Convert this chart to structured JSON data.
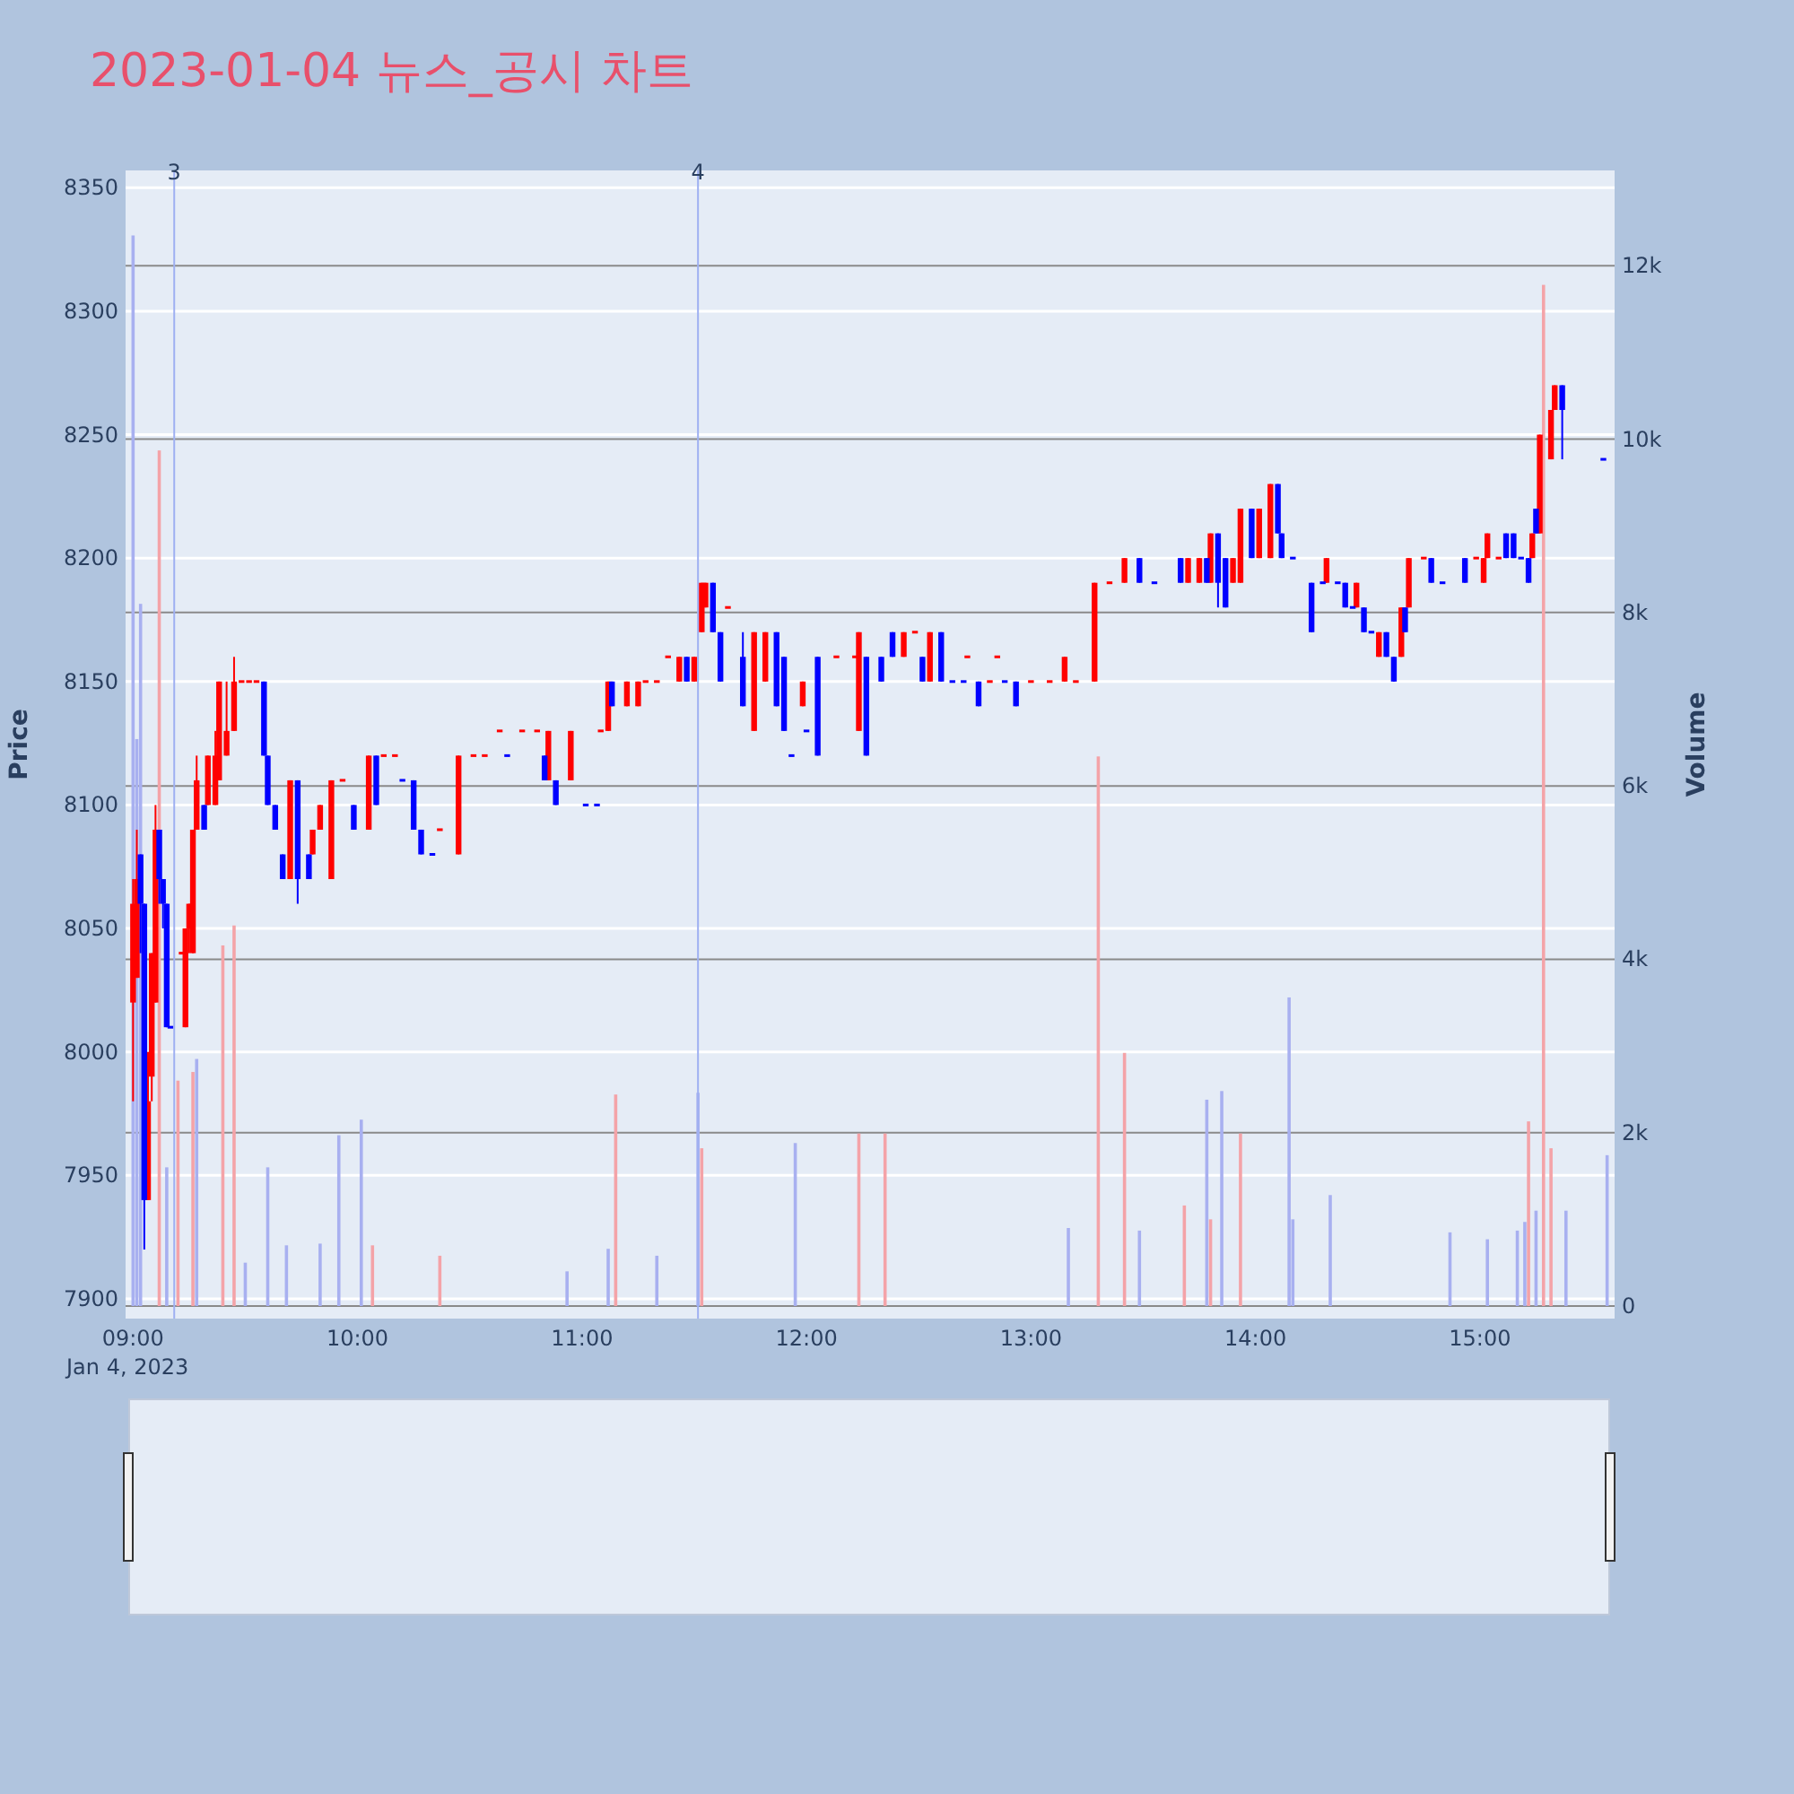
{
  "chart_data": {
    "type": "candlestick",
    "title": "2023-01-04 뉴스_공시 차트",
    "ylabel": "Price",
    "y2label": "Volume",
    "grid": "y",
    "xlim": [
      "2023-01-04T08:58",
      "2023-01-04T15:36"
    ],
    "xticks": [
      {
        "value": "2023-01-04T09:00",
        "label": "09:00\nJan 4, 2023"
      },
      {
        "value": "2023-01-04T10:00",
        "label": "10:00"
      },
      {
        "value": "2023-01-04T11:00",
        "label": "11:00"
      },
      {
        "value": "2023-01-04T12:00",
        "label": "12:00"
      },
      {
        "value": "2023-01-04T13:00",
        "label": "13:00"
      },
      {
        "value": "2023-01-04T14:00",
        "label": "14:00"
      },
      {
        "value": "2023-01-04T15:00",
        "label": "15:00"
      }
    ],
    "ylim": [
      7892,
      8357
    ],
    "yticks": [
      7900,
      7950,
      8000,
      8050,
      8100,
      8150,
      8200,
      8250,
      8300,
      8350
    ],
    "y2lim": [
      -145,
      13100
    ],
    "y2ticks": [
      0,
      {
        "value": 2000,
        "label": "2k"
      },
      {
        "value": 4000,
        "label": "4k"
      },
      {
        "value": 6000,
        "label": "6k"
      },
      {
        "value": 8000,
        "label": "8k"
      },
      {
        "value": 10000,
        "label": "10k"
      },
      {
        "value": 12000,
        "label": "12k"
      }
    ],
    "ref_lines": [
      {
        "axis": "x",
        "value": "2023-01-04T09:11",
        "label": "3",
        "color": "#9fb0f2"
      },
      {
        "axis": "x",
        "value": "2023-01-04T11:31",
        "label": "4",
        "color": "#9fb0f2"
      }
    ],
    "series": [
      {
        "type": "bar",
        "axis": "y2",
        "x": [
          "2023-01-04T09:00",
          "2023-01-04T09:01",
          "2023-01-04T09:02",
          "2023-01-04T09:07",
          "2023-01-04T09:09",
          "2023-01-04T09:12",
          "2023-01-04T09:16",
          "2023-01-04T09:17",
          "2023-01-04T09:24",
          "2023-01-04T09:27",
          "2023-01-04T09:30",
          "2023-01-04T09:36",
          "2023-01-04T09:41",
          "2023-01-04T09:50",
          "2023-01-04T09:55",
          "2023-01-04T10:01",
          "2023-01-04T10:04",
          "2023-01-04T10:22",
          "2023-01-04T10:56",
          "2023-01-04T11:07",
          "2023-01-04T11:09",
          "2023-01-04T11:20",
          "2023-01-04T11:31",
          "2023-01-04T11:32",
          "2023-01-04T11:57",
          "2023-01-04T12:14",
          "2023-01-04T12:21",
          "2023-01-04T13:10",
          "2023-01-04T13:18",
          "2023-01-04T13:25",
          "2023-01-04T13:29",
          "2023-01-04T13:41",
          "2023-01-04T13:47",
          "2023-01-04T13:48",
          "2023-01-04T13:51",
          "2023-01-04T13:56",
          "2023-01-04T14:09",
          "2023-01-04T14:10",
          "2023-01-04T14:20",
          "2023-01-04T14:52",
          "2023-01-04T15:02",
          "2023-01-04T15:10",
          "2023-01-04T15:12",
          "2023-01-04T15:13",
          "2023-01-04T15:15",
          "2023-01-04T15:17",
          "2023-01-04T15:19",
          "2023-01-04T15:23",
          "2023-01-04T15:34"
        ],
        "values": [
          12350,
          6540,
          8100,
          9870,
          1600,
          2600,
          2700,
          2850,
          4160,
          4390,
          500,
          1600,
          700,
          720,
          1970,
          2150,
          700,
          580,
          400,
          660,
          2440,
          580,
          2460,
          1820,
          1880,
          1990,
          1990,
          900,
          6340,
          2920,
          870,
          1160,
          2380,
          1000,
          2480,
          1990,
          3560,
          1000,
          1280,
          850,
          770,
          870,
          970,
          2130,
          1100,
          11780,
          1820,
          1100,
          1740
        ],
        "colors": [
          "#a8b0f0",
          "#a8b0f0",
          "#a8b0f0",
          "#f4a3a8",
          "#a8b0f0",
          "#f4a3a8",
          "#f4a3a8",
          "#a8b0f0",
          "#f4a3a8",
          "#f4a3a8",
          "#a8b0f0",
          "#a8b0f0",
          "#a8b0f0",
          "#a8b0f0",
          "#a8b0f0",
          "#a8b0f0",
          "#f4a3a8",
          "#f4a3a8",
          "#a8b0f0",
          "#a8b0f0",
          "#f4a3a8",
          "#a8b0f0",
          "#a8b0f0",
          "#f4a3a8",
          "#a8b0f0",
          "#f4a3a8",
          "#f4a3a8",
          "#a8b0f0",
          "#f4a3a8",
          "#f4a3a8",
          "#a8b0f0",
          "#f4a3a8",
          "#a8b0f0",
          "#f4a3a8",
          "#a8b0f0",
          "#f4a3a8",
          "#a8b0f0",
          "#a8b0f0",
          "#a8b0f0",
          "#a8b0f0",
          "#a8b0f0",
          "#a8b0f0",
          "#a8b0f0",
          "#f4a3a8",
          "#a8b0f0",
          "#f4a3a8",
          "#f4a3a8",
          "#a8b0f0",
          "#a8b0f0"
        ]
      },
      {
        "type": "candlestick",
        "color": "#ff0000",
        "x": [
          "2023-01-04T09:00",
          "2023-01-04T09:01",
          "2023-01-04T09:04",
          "2023-01-04T09:05",
          "2023-01-04T09:06",
          "2023-01-04T09:13",
          "2023-01-04T09:14",
          "2023-01-04T09:15",
          "2023-01-04T09:16",
          "2023-01-04T09:17",
          "2023-01-04T09:20",
          "2023-01-04T09:22",
          "2023-01-04T09:23",
          "2023-01-04T09:25",
          "2023-01-04T09:27",
          "2023-01-04T09:29",
          "2023-01-04T09:31",
          "2023-01-04T09:33",
          "2023-01-04T09:42",
          "2023-01-04T09:48",
          "2023-01-04T09:50",
          "2023-01-04T09:53",
          "2023-01-04T09:56",
          "2023-01-04T10:03",
          "2023-01-04T10:07",
          "2023-01-04T10:10",
          "2023-01-04T10:22",
          "2023-01-04T10:27",
          "2023-01-04T10:31",
          "2023-01-04T10:34",
          "2023-01-04T10:38",
          "2023-01-04T10:44",
          "2023-01-04T10:48",
          "2023-01-04T10:51",
          "2023-01-04T10:57",
          "2023-01-04T11:05",
          "2023-01-04T11:07",
          "2023-01-04T11:12",
          "2023-01-04T11:15",
          "2023-01-04T11:17",
          "2023-01-04T11:20",
          "2023-01-04T11:23",
          "2023-01-04T11:26",
          "2023-01-04T11:30",
          "2023-01-04T11:32",
          "2023-01-04T11:33",
          "2023-01-04T11:39",
          "2023-01-04T11:46",
          "2023-01-04T11:49",
          "2023-01-04T11:59",
          "2023-01-04T12:08",
          "2023-01-04T12:13",
          "2023-01-04T12:14",
          "2023-01-04T12:26",
          "2023-01-04T12:29",
          "2023-01-04T12:33",
          "2023-01-04T12:43",
          "2023-01-04T12:49",
          "2023-01-04T12:51",
          "2023-01-04T13:00",
          "2023-01-04T13:05",
          "2023-01-04T13:09",
          "2023-01-04T13:12",
          "2023-01-04T13:17",
          "2023-01-04T13:21",
          "2023-01-04T13:25",
          "2023-01-04T13:42",
          "2023-01-04T13:45",
          "2023-01-04T13:48",
          "2023-01-04T13:54",
          "2023-01-04T13:56",
          "2023-01-04T14:01",
          "2023-01-04T14:04",
          "2023-01-04T14:19",
          "2023-01-04T14:27",
          "2023-01-04T14:33",
          "2023-01-04T14:39",
          "2023-01-04T14:41",
          "2023-01-04T14:45",
          "2023-01-04T14:59",
          "2023-01-04T15:01",
          "2023-01-04T15:02",
          "2023-01-04T15:05",
          "2023-01-04T15:14",
          "2023-01-04T15:16",
          "2023-01-04T15:19",
          "2023-01-04T15:20"
        ],
        "ohlc": [
          [
            8020,
            8070,
            7980,
            8060
          ],
          [
            8030,
            8090,
            8030,
            8070
          ],
          [
            7940,
            8000,
            7940,
            7980
          ],
          [
            7990,
            8040,
            7980,
            8040
          ],
          [
            8020,
            8100,
            8020,
            8090
          ],
          [
            8040,
            8040,
            8040,
            8040
          ],
          [
            8010,
            8050,
            8010,
            8050
          ],
          [
            8050,
            8060,
            8040,
            8060
          ],
          [
            8040,
            8090,
            8040,
            8090
          ],
          [
            8090,
            8120,
            8090,
            8110
          ],
          [
            8100,
            8120,
            8100,
            8120
          ],
          [
            8100,
            8130,
            8100,
            8120
          ],
          [
            8110,
            8150,
            8110,
            8150
          ],
          [
            8120,
            8150,
            8120,
            8130
          ],
          [
            8130,
            8160,
            8130,
            8150
          ],
          [
            8150,
            8150,
            8150,
            8150
          ],
          [
            8150,
            8150,
            8150,
            8150
          ],
          [
            8150,
            8150,
            8150,
            8150
          ],
          [
            8070,
            8110,
            8070,
            8110
          ],
          [
            8080,
            8090,
            8080,
            8090
          ],
          [
            8090,
            8100,
            8090,
            8100
          ],
          [
            8070,
            8110,
            8070,
            8110
          ],
          [
            8110,
            8110,
            8110,
            8110
          ],
          [
            8090,
            8120,
            8090,
            8120
          ],
          [
            8120,
            8120,
            8120,
            8120
          ],
          [
            8120,
            8120,
            8120,
            8120
          ],
          [
            8090,
            8090,
            8090,
            8090
          ],
          [
            8080,
            8120,
            8080,
            8120
          ],
          [
            8120,
            8120,
            8120,
            8120
          ],
          [
            8120,
            8120,
            8120,
            8120
          ],
          [
            8130,
            8130,
            8130,
            8130
          ],
          [
            8130,
            8130,
            8130,
            8130
          ],
          [
            8130,
            8130,
            8130,
            8130
          ],
          [
            8110,
            8130,
            8110,
            8130
          ],
          [
            8110,
            8130,
            8110,
            8130
          ],
          [
            8130,
            8130,
            8130,
            8130
          ],
          [
            8130,
            8150,
            8130,
            8150
          ],
          [
            8140,
            8150,
            8140,
            8150
          ],
          [
            8140,
            8150,
            8140,
            8150
          ],
          [
            8150,
            8150,
            8150,
            8150
          ],
          [
            8150,
            8150,
            8150,
            8150
          ],
          [
            8160,
            8160,
            8160,
            8160
          ],
          [
            8150,
            8160,
            8150,
            8160
          ],
          [
            8150,
            8160,
            8150,
            8160
          ],
          [
            8170,
            8190,
            8170,
            8190
          ],
          [
            8180,
            8190,
            8180,
            8190
          ],
          [
            8180,
            8180,
            8180,
            8180
          ],
          [
            8130,
            8170,
            8130,
            8170
          ],
          [
            8150,
            8170,
            8150,
            8170
          ],
          [
            8140,
            8150,
            8140,
            8150
          ],
          [
            8160,
            8160,
            8160,
            8160
          ],
          [
            8160,
            8160,
            8160,
            8160
          ],
          [
            8130,
            8170,
            8130,
            8170
          ],
          [
            8160,
            8170,
            8160,
            8170
          ],
          [
            8170,
            8170,
            8170,
            8170
          ],
          [
            8150,
            8170,
            8150,
            8170
          ],
          [
            8160,
            8160,
            8160,
            8160
          ],
          [
            8150,
            8150,
            8150,
            8150
          ],
          [
            8160,
            8160,
            8160,
            8160
          ],
          [
            8150,
            8150,
            8150,
            8150
          ],
          [
            8150,
            8150,
            8150,
            8150
          ],
          [
            8150,
            8160,
            8150,
            8160
          ],
          [
            8150,
            8150,
            8150,
            8150
          ],
          [
            8150,
            8190,
            8150,
            8190
          ],
          [
            8190,
            8190,
            8190,
            8190
          ],
          [
            8190,
            8200,
            8190,
            8200
          ],
          [
            8190,
            8200,
            8190,
            8200
          ],
          [
            8190,
            8200,
            8190,
            8200
          ],
          [
            8190,
            8210,
            8190,
            8210
          ],
          [
            8190,
            8200,
            8190,
            8200
          ],
          [
            8190,
            8220,
            8190,
            8220
          ],
          [
            8200,
            8220,
            8200,
            8220
          ],
          [
            8200,
            8230,
            8200,
            8230
          ],
          [
            8190,
            8200,
            8190,
            8200
          ],
          [
            8180,
            8190,
            8180,
            8190
          ],
          [
            8160,
            8170,
            8160,
            8170
          ],
          [
            8160,
            8180,
            8160,
            8180
          ],
          [
            8180,
            8200,
            8180,
            8200
          ],
          [
            8200,
            8200,
            8200,
            8200
          ],
          [
            8200,
            8200,
            8200,
            8200
          ],
          [
            8190,
            8200,
            8190,
            8200
          ],
          [
            8200,
            8210,
            8200,
            8210
          ],
          [
            8200,
            8200,
            8200,
            8200
          ],
          [
            8200,
            8210,
            8200,
            8210
          ],
          [
            8210,
            8250,
            8210,
            8250
          ],
          [
            8240,
            8260,
            8240,
            8260
          ],
          [
            8260,
            8270,
            8260,
            8270
          ]
        ]
      },
      {
        "type": "candlestick",
        "color": "#0000ff",
        "x": [
          "2023-01-04T09:02",
          "2023-01-04T09:03",
          "2023-01-04T09:07",
          "2023-01-04T09:08",
          "2023-01-04T09:09",
          "2023-01-04T09:10",
          "2023-01-04T09:19",
          "2023-01-04T09:35",
          "2023-01-04T09:36",
          "2023-01-04T09:38",
          "2023-01-04T09:40",
          "2023-01-04T09:44",
          "2023-01-04T09:47",
          "2023-01-04T09:59",
          "2023-01-04T10:05",
          "2023-01-04T10:12",
          "2023-01-04T10:15",
          "2023-01-04T10:17",
          "2023-01-04T10:20",
          "2023-01-04T10:40",
          "2023-01-04T10:50",
          "2023-01-04T10:53",
          "2023-01-04T11:01",
          "2023-01-04T11:04",
          "2023-01-04T11:08",
          "2023-01-04T11:28",
          "2023-01-04T11:35",
          "2023-01-04T11:37",
          "2023-01-04T11:43",
          "2023-01-04T11:52",
          "2023-01-04T11:54",
          "2023-01-04T11:56",
          "2023-01-04T12:00",
          "2023-01-04T12:03",
          "2023-01-04T12:16",
          "2023-01-04T12:20",
          "2023-01-04T12:23",
          "2023-01-04T12:31",
          "2023-01-04T12:36",
          "2023-01-04T12:39",
          "2023-01-04T12:42",
          "2023-01-04T12:46",
          "2023-01-04T12:53",
          "2023-01-04T12:56",
          "2023-01-04T13:29",
          "2023-01-04T13:33",
          "2023-01-04T13:40",
          "2023-01-04T13:47",
          "2023-01-04T13:50",
          "2023-01-04T13:52",
          "2023-01-04T13:59",
          "2023-01-04T14:06",
          "2023-01-04T14:07",
          "2023-01-04T14:10",
          "2023-01-04T14:15",
          "2023-01-04T14:18",
          "2023-01-04T14:22",
          "2023-01-04T14:24",
          "2023-01-04T14:26",
          "2023-01-04T14:29",
          "2023-01-04T14:31",
          "2023-01-04T14:35",
          "2023-01-04T14:37",
          "2023-01-04T14:40",
          "2023-01-04T14:47",
          "2023-01-04T14:50",
          "2023-01-04T14:56",
          "2023-01-04T15:07",
          "2023-01-04T15:09",
          "2023-01-04T15:11",
          "2023-01-04T15:13",
          "2023-01-04T15:15",
          "2023-01-04T15:22",
          "2023-01-04T15:33"
        ],
        "ohlc": [
          [
            8080,
            8080,
            8040,
            8060
          ],
          [
            8060,
            8060,
            7920,
            7940
          ],
          [
            8090,
            8090,
            8060,
            8070
          ],
          [
            8070,
            8070,
            8050,
            8060
          ],
          [
            8060,
            8060,
            8010,
            8010
          ],
          [
            8010,
            8010,
            8010,
            8010
          ],
          [
            8100,
            8100,
            8090,
            8090
          ],
          [
            8150,
            8150,
            8120,
            8120
          ],
          [
            8120,
            8120,
            8100,
            8100
          ],
          [
            8100,
            8100,
            8090,
            8090
          ],
          [
            8080,
            8080,
            8070,
            8070
          ],
          [
            8110,
            8110,
            8060,
            8070
          ],
          [
            8080,
            8080,
            8070,
            8070
          ],
          [
            8100,
            8100,
            8090,
            8090
          ],
          [
            8120,
            8120,
            8100,
            8100
          ],
          [
            8110,
            8110,
            8110,
            8110
          ],
          [
            8110,
            8110,
            8090,
            8090
          ],
          [
            8090,
            8090,
            8080,
            8080
          ],
          [
            8080,
            8080,
            8080,
            8080
          ],
          [
            8120,
            8120,
            8120,
            8120
          ],
          [
            8120,
            8120,
            8110,
            8110
          ],
          [
            8110,
            8110,
            8100,
            8100
          ],
          [
            8100,
            8100,
            8100,
            8100
          ],
          [
            8100,
            8100,
            8100,
            8100
          ],
          [
            8150,
            8150,
            8140,
            8140
          ],
          [
            8160,
            8160,
            8150,
            8150
          ],
          [
            8190,
            8190,
            8170,
            8170
          ],
          [
            8170,
            8170,
            8150,
            8150
          ],
          [
            8160,
            8170,
            8140,
            8140
          ],
          [
            8170,
            8170,
            8140,
            8140
          ],
          [
            8160,
            8160,
            8130,
            8130
          ],
          [
            8120,
            8120,
            8120,
            8120
          ],
          [
            8130,
            8130,
            8130,
            8130
          ],
          [
            8160,
            8160,
            8120,
            8120
          ],
          [
            8160,
            8160,
            8120,
            8120
          ],
          [
            8160,
            8160,
            8150,
            8150
          ],
          [
            8170,
            8170,
            8160,
            8160
          ],
          [
            8160,
            8160,
            8150,
            8150
          ],
          [
            8170,
            8170,
            8150,
            8150
          ],
          [
            8150,
            8150,
            8150,
            8150
          ],
          [
            8150,
            8150,
            8150,
            8150
          ],
          [
            8150,
            8150,
            8140,
            8140
          ],
          [
            8150,
            8150,
            8150,
            8150
          ],
          [
            8150,
            8150,
            8140,
            8140
          ],
          [
            8200,
            8200,
            8190,
            8190
          ],
          [
            8190,
            8190,
            8190,
            8190
          ],
          [
            8200,
            8200,
            8190,
            8190
          ],
          [
            8200,
            8200,
            8190,
            8190
          ],
          [
            8210,
            8210,
            8180,
            8190
          ],
          [
            8200,
            8200,
            8180,
            8180
          ],
          [
            8220,
            8220,
            8200,
            8200
          ],
          [
            8230,
            8230,
            8210,
            8210
          ],
          [
            8210,
            8210,
            8200,
            8200
          ],
          [
            8200,
            8200,
            8200,
            8200
          ],
          [
            8190,
            8190,
            8170,
            8170
          ],
          [
            8190,
            8190,
            8190,
            8190
          ],
          [
            8190,
            8190,
            8190,
            8190
          ],
          [
            8190,
            8190,
            8180,
            8180
          ],
          [
            8180,
            8180,
            8180,
            8180
          ],
          [
            8180,
            8180,
            8170,
            8170
          ],
          [
            8170,
            8170,
            8170,
            8170
          ],
          [
            8170,
            8170,
            8160,
            8160
          ],
          [
            8160,
            8160,
            8150,
            8150
          ],
          [
            8180,
            8180,
            8170,
            8170
          ],
          [
            8200,
            8200,
            8190,
            8190
          ],
          [
            8190,
            8190,
            8190,
            8190
          ],
          [
            8200,
            8200,
            8190,
            8190
          ],
          [
            8210,
            8210,
            8200,
            8200
          ],
          [
            8210,
            8210,
            8200,
            8200
          ],
          [
            8200,
            8200,
            8200,
            8200
          ],
          [
            8200,
            8200,
            8190,
            8190
          ],
          [
            8220,
            8220,
            8210,
            8210
          ],
          [
            8270,
            8270,
            8240,
            8260
          ],
          [
            8240,
            8240,
            8240,
            8240
          ]
        ]
      }
    ]
  }
}
